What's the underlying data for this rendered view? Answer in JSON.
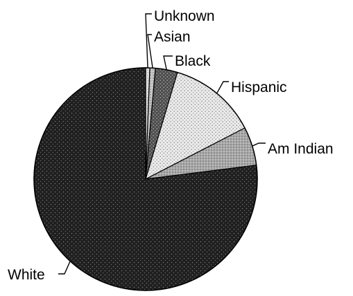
{
  "chart_data": {
    "type": "pie",
    "title": "",
    "slices": [
      {
        "label": "Unknown",
        "value": 0.6,
        "color": "#d9d9d9"
      },
      {
        "label": "Asian",
        "value": 0.8,
        "color": "#cfcfcf"
      },
      {
        "label": "Black",
        "value": 3.2,
        "color": "#5a5a5a"
      },
      {
        "label": "Hispanic",
        "value": 12.8,
        "color": "#e6e6e6"
      },
      {
        "label": "Am Indian",
        "value": 5.6,
        "color": "#9b9b9b"
      },
      {
        "label": "White",
        "value": 77.0,
        "color": "#1f1f1f"
      }
    ],
    "start_angle_deg": 0,
    "direction": "clockwise",
    "legend": "none",
    "label_style": "external labels with leader lines"
  }
}
